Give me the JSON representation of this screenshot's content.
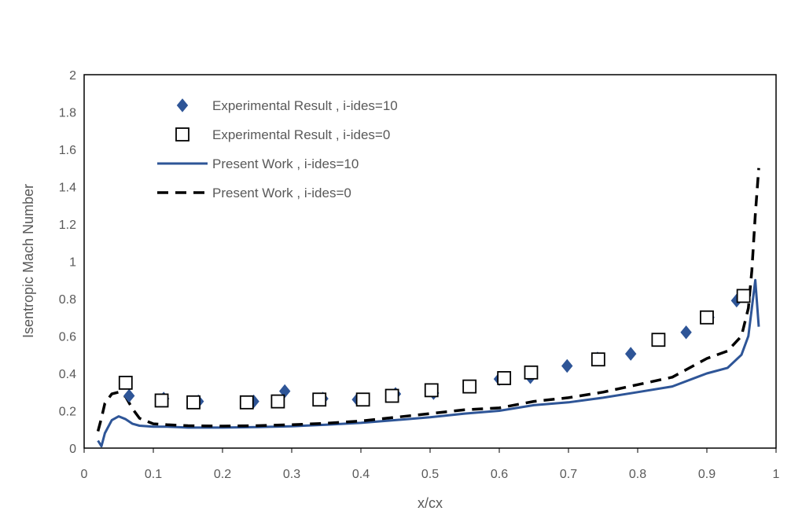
{
  "chart_data": {
    "type": "scatter",
    "title": "",
    "xlabel": "x/cx",
    "ylabel": "Isentropic Mach Number",
    "xlim": [
      0,
      1
    ],
    "ylim": [
      0,
      2
    ],
    "x_ticks": [
      "0",
      "0.1",
      "0.2",
      "0.3",
      "0.4",
      "0.5",
      "0.6",
      "0.7",
      "0.8",
      "0.9",
      "1"
    ],
    "y_ticks": [
      "0",
      "0.2",
      "0.4",
      "0.6",
      "0.8",
      "1",
      "1.2",
      "1.4",
      "1.6",
      "1.8",
      "2"
    ],
    "grid": false,
    "legend_position": "top-left",
    "series": [
      {
        "name": "Experimental Result , i-ides=10",
        "kind": "scatter",
        "marker": "diamond",
        "color": "#2e5597",
        "x": [
          0.065,
          0.115,
          0.165,
          0.245,
          0.29,
          0.345,
          0.395,
          0.45,
          0.505,
          0.555,
          0.6,
          0.645,
          0.698,
          0.742,
          0.79,
          0.83,
          0.87,
          0.903,
          0.943
        ],
        "y": [
          0.28,
          0.265,
          0.25,
          0.25,
          0.305,
          0.265,
          0.26,
          0.29,
          0.295,
          0.33,
          0.37,
          0.38,
          0.44,
          0.48,
          0.505,
          0.58,
          0.62,
          0.7,
          0.79
        ]
      },
      {
        "name": "Experimental Result , i-ides=0",
        "kind": "scatter",
        "marker": "square-open",
        "color": "#000000",
        "x": [
          0.06,
          0.112,
          0.158,
          0.235,
          0.28,
          0.34,
          0.403,
          0.445,
          0.502,
          0.557,
          0.607,
          0.646,
          0.743,
          0.83,
          0.9,
          0.953
        ],
        "y": [
          0.35,
          0.255,
          0.245,
          0.245,
          0.25,
          0.26,
          0.26,
          0.28,
          0.31,
          0.33,
          0.375,
          0.405,
          0.475,
          0.58,
          0.7,
          0.815
        ]
      },
      {
        "name": "Present Work , i-ides=10",
        "kind": "line",
        "style": "solid",
        "color": "#2e5597",
        "x": [
          0.02,
          0.025,
          0.03,
          0.04,
          0.05,
          0.06,
          0.07,
          0.08,
          0.1,
          0.12,
          0.15,
          0.2,
          0.25,
          0.3,
          0.35,
          0.4,
          0.45,
          0.5,
          0.55,
          0.6,
          0.65,
          0.7,
          0.75,
          0.8,
          0.85,
          0.9,
          0.93,
          0.95,
          0.96,
          0.965,
          0.97,
          0.975
        ],
        "y": [
          0.04,
          0.01,
          0.08,
          0.15,
          0.17,
          0.155,
          0.13,
          0.12,
          0.115,
          0.115,
          0.11,
          0.11,
          0.113,
          0.117,
          0.125,
          0.135,
          0.15,
          0.165,
          0.185,
          0.2,
          0.23,
          0.245,
          0.27,
          0.3,
          0.33,
          0.4,
          0.43,
          0.5,
          0.6,
          0.75,
          0.9,
          0.65
        ]
      },
      {
        "name": "Present Work , i-ides=0",
        "kind": "line",
        "style": "dashed",
        "color": "#000000",
        "x": [
          0.02,
          0.025,
          0.03,
          0.04,
          0.05,
          0.06,
          0.07,
          0.08,
          0.1,
          0.12,
          0.15,
          0.2,
          0.25,
          0.3,
          0.35,
          0.4,
          0.45,
          0.5,
          0.55,
          0.6,
          0.65,
          0.7,
          0.75,
          0.8,
          0.85,
          0.9,
          0.93,
          0.95,
          0.96,
          0.965,
          0.97,
          0.975
        ],
        "y": [
          0.09,
          0.16,
          0.24,
          0.29,
          0.3,
          0.275,
          0.21,
          0.16,
          0.13,
          0.125,
          0.12,
          0.118,
          0.12,
          0.125,
          0.133,
          0.145,
          0.165,
          0.185,
          0.205,
          0.215,
          0.25,
          0.27,
          0.3,
          0.34,
          0.38,
          0.48,
          0.52,
          0.6,
          0.75,
          0.95,
          1.25,
          1.5
        ]
      }
    ]
  }
}
